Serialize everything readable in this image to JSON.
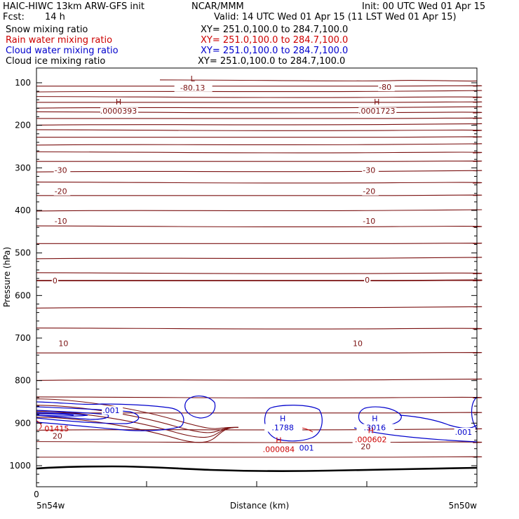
{
  "header": {
    "title": "HAIC-HIWC 13km ARW-GFS init",
    "center": "NCAR/MMM",
    "init": "Init: 00 UTC Wed 01 Apr 15",
    "fcst_label": "Fcst:",
    "fcst_value": "14 h",
    "valid": "Valid: 14 UTC Wed 01 Apr 15 (11 LST Wed 01 Apr 15)"
  },
  "fields": [
    {
      "name": "Snow mixing ratio",
      "xy": "XY= 251.0,100.0 to 284.7,100.0",
      "color": "#000000"
    },
    {
      "name": "Rain water mixing ratio",
      "xy": "XY= 251.0,100.0 to 284.7,100.0",
      "color": "#cc0000"
    },
    {
      "name": "Cloud water mixing ratio",
      "xy": "XY= 251.0,100.0 to 284.7,100.0",
      "color": "#0000cc"
    },
    {
      "name": "Cloud ice mixing ratio",
      "xy": "XY= 251.0,100.0 to 284.7,100.0",
      "color": "#000000"
    }
  ],
  "chart_data": {
    "type": "contour-cross-section",
    "ylabel": "Pressure (hPa)",
    "xlabel": "Distance (km)",
    "ylim": [
      1050,
      50
    ],
    "xlim": [
      0,
      22
    ],
    "y_ticks": [
      100,
      200,
      300,
      400,
      500,
      600,
      700,
      800,
      900,
      1000
    ],
    "x_ticks": [
      0
    ],
    "x_tick_count": 5,
    "x_start_label": "5n54w",
    "x_end_label": "5n50w",
    "colors": {
      "temperature": "#7a1010",
      "cloud_water": "#0000cc",
      "rain": "#cc0000",
      "terrain": "#000000"
    },
    "temperature_contours": {
      "interval": 5,
      "labeled_values": [
        -80,
        -30,
        -20,
        -10,
        0,
        10,
        20
      ],
      "level_pressures_hPa": [
        95,
        108,
        120,
        134,
        146,
        158,
        170,
        184,
        198,
        212,
        228,
        245,
        264,
        285,
        308,
        335,
        365,
        400,
        438,
        478,
        512,
        548,
        565,
        628,
        678,
        735,
        798,
        840,
        876,
        915,
        945,
        980
      ],
      "labels": [
        {
          "text": "-80",
          "x": 17.1,
          "p": 110
        },
        {
          "text": "-30",
          "x": 0.9,
          "p": 305
        },
        {
          "text": "-30",
          "x": 16.3,
          "p": 305
        },
        {
          "text": "-20",
          "x": 0.9,
          "p": 355
        },
        {
          "text": "-20",
          "x": 16.3,
          "p": 355
        },
        {
          "text": "-10",
          "x": 0.9,
          "p": 425
        },
        {
          "text": "-10",
          "x": 16.3,
          "p": 425
        },
        {
          "text": "0",
          "x": 0.8,
          "p": 565
        },
        {
          "text": "0",
          "x": 16.4,
          "p": 563
        },
        {
          "text": "10",
          "x": 1.1,
          "p": 712
        },
        {
          "text": "10",
          "x": 15.8,
          "p": 712
        },
        {
          "text": "20",
          "x": 0.8,
          "p": 930
        },
        {
          "text": "20",
          "x": 16.2,
          "p": 955
        }
      ],
      "extrema": [
        {
          "mark": "L",
          "value": "-80.13",
          "x": 7.8,
          "p": 103
        },
        {
          "mark": "H",
          "value": ".0000393",
          "x": 4.1,
          "p": 158
        },
        {
          "mark": "H",
          "value": ".0001723",
          "x": 17.0,
          "p": 158
        }
      ]
    },
    "cloud_water_contours": {
      "labeled_values": [
        0.001
      ],
      "labels": [
        {
          "text": ".001",
          "x": 3.3,
          "p": 870
        },
        {
          "text": ".001",
          "x": 20.9,
          "p": 921
        },
        {
          "text": ".001",
          "x": 13.0,
          "p": 958
        }
      ],
      "extrema": [
        {
          "mark": "H",
          "value": ".1788",
          "x": 12.3,
          "p": 902
        },
        {
          "mark": "H",
          "value": ".3016",
          "x": 16.9,
          "p": 902
        }
      ]
    },
    "rain_contours": {
      "labels": [
        {
          "text": "01415",
          "x": 0.4,
          "p": 913
        }
      ],
      "extrema": [
        {
          "mark": "H",
          "value": ".000084",
          "x": 12.1,
          "p": 953
        },
        {
          "mark": "H",
          "value": ".000602",
          "x": 16.7,
          "p": 930
        }
      ]
    }
  }
}
